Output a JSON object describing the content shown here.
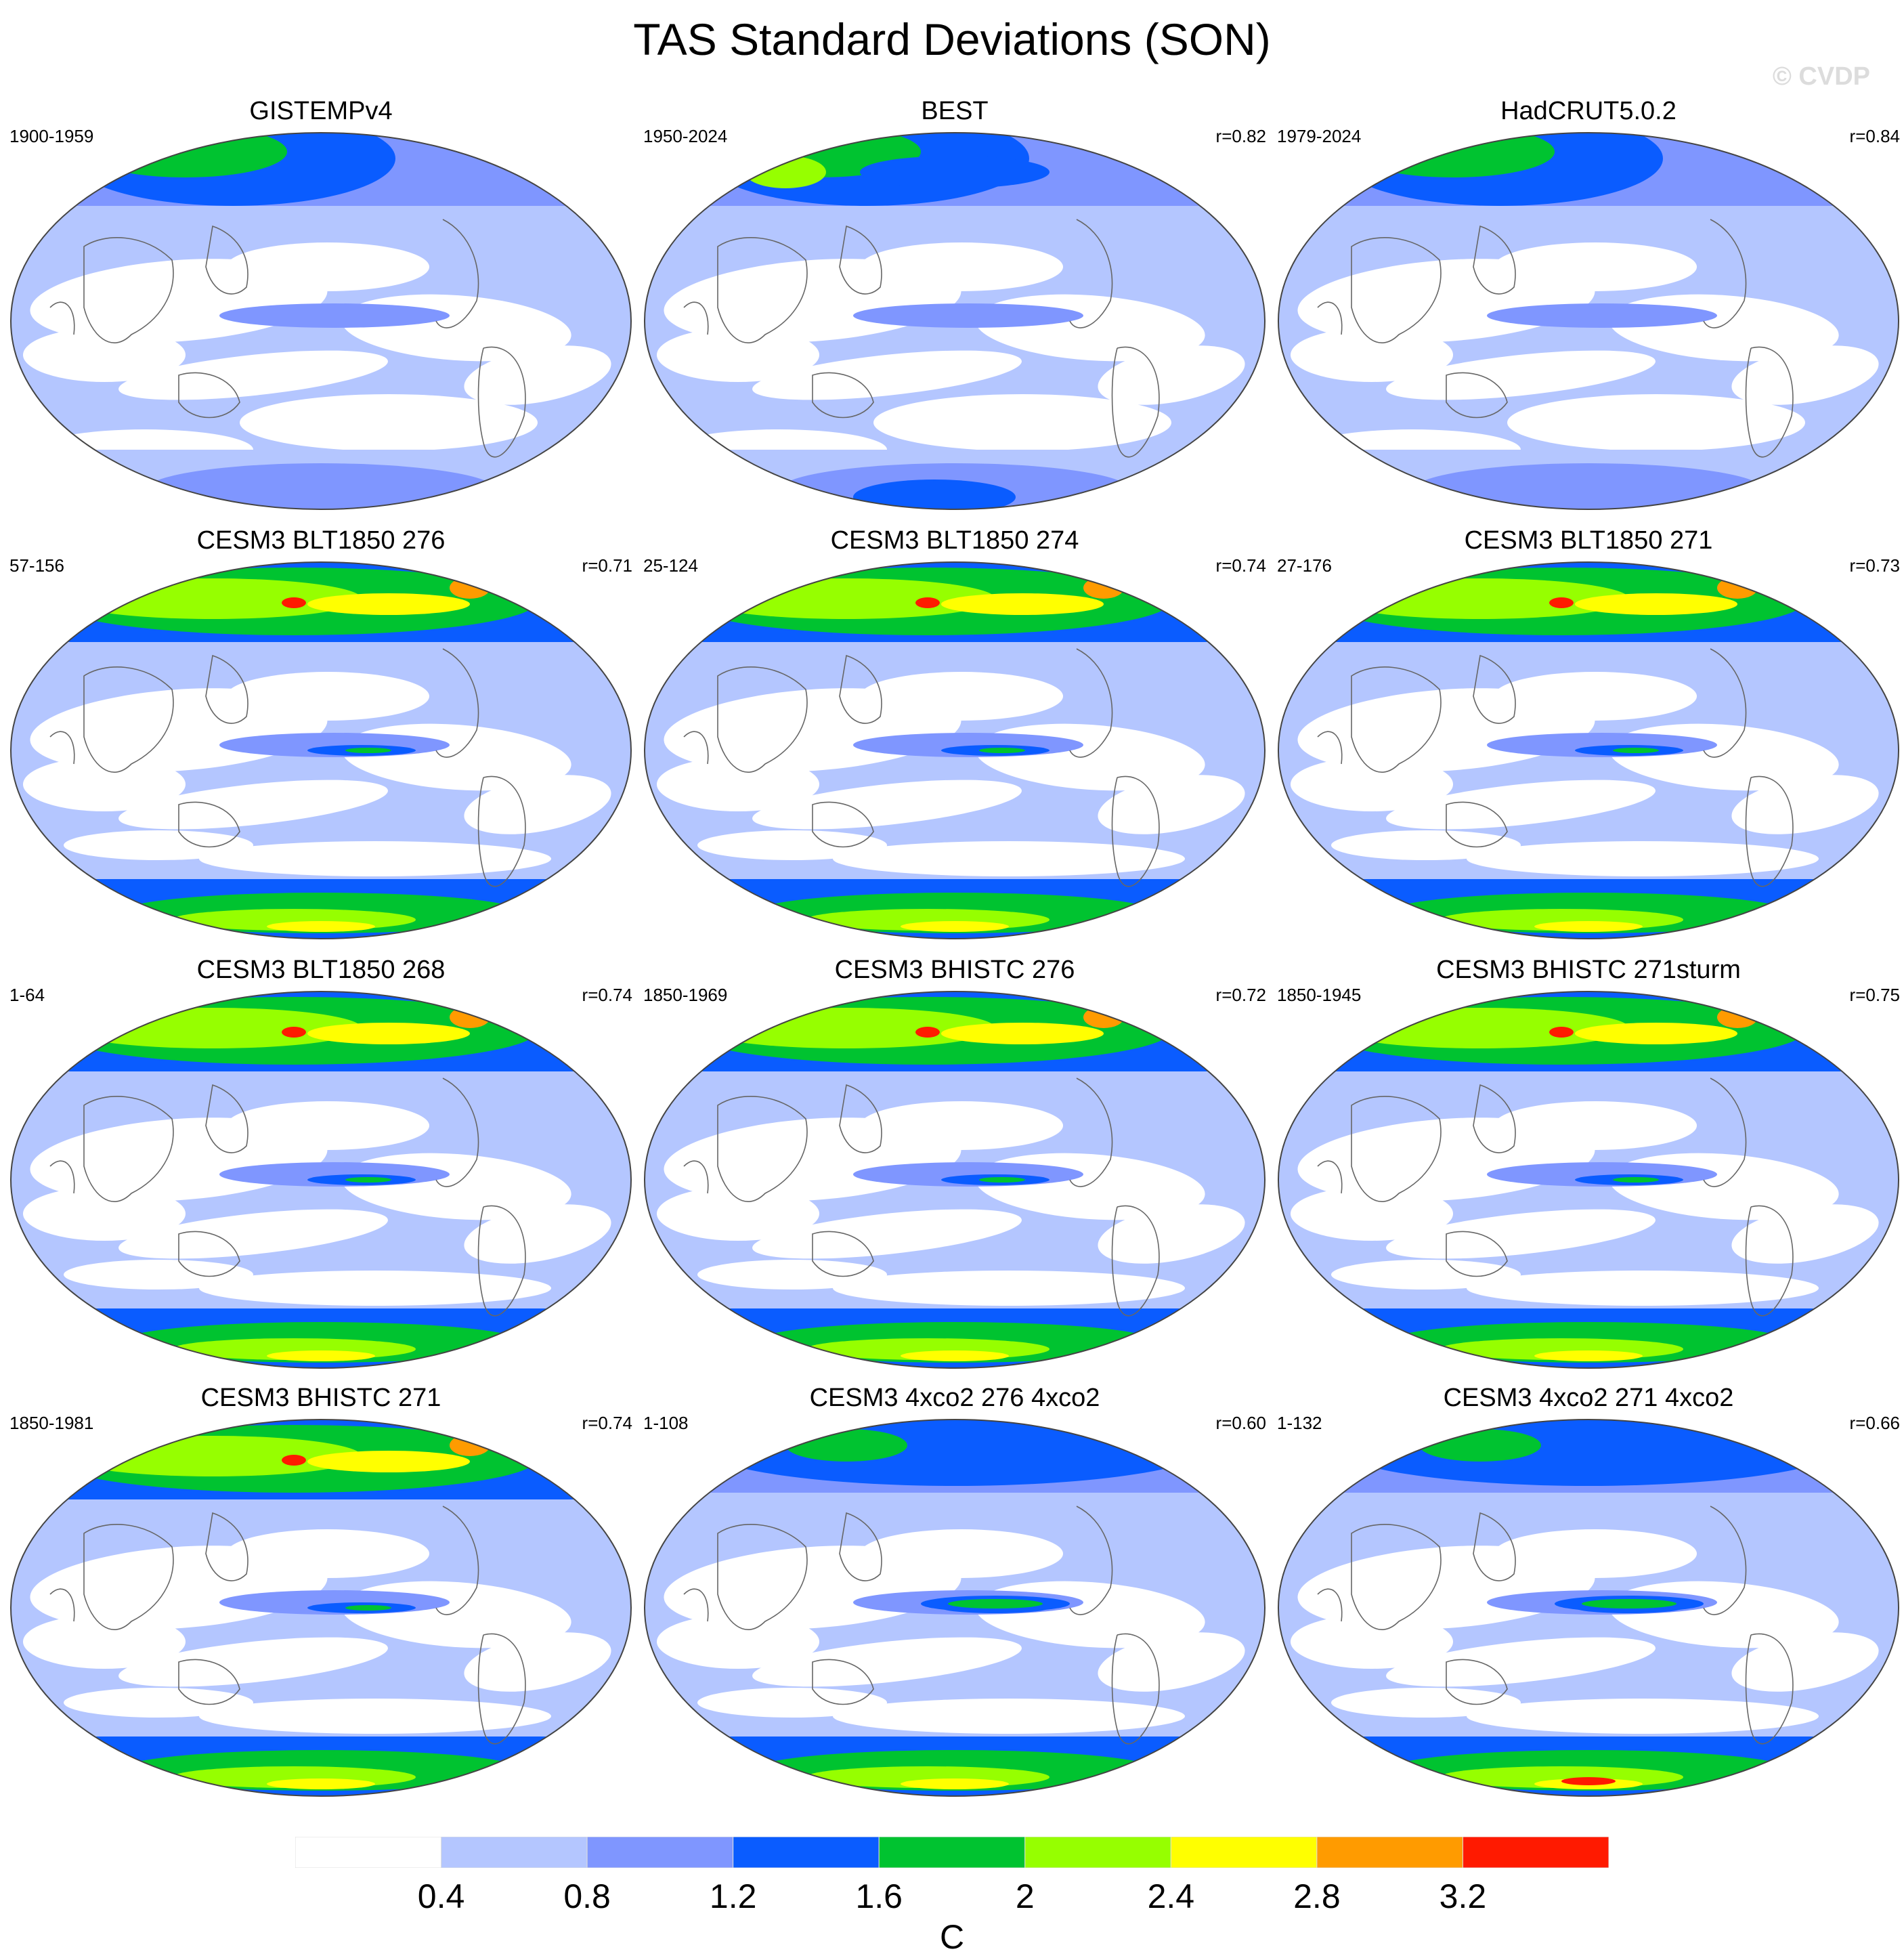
{
  "title": "TAS Standard Deviations (SON)",
  "watermark": "© CVDP",
  "chart_data": {
    "type": "heatmap",
    "title": "TAS Standard Deviations (SON)",
    "colorbar": {
      "unit": "C",
      "levels": [
        0.4,
        0.8,
        1.2,
        1.6,
        2,
        2.4,
        2.8,
        3.2
      ],
      "tick_labels": [
        "0.4",
        "0.8",
        "1.2",
        "1.6",
        "2",
        "2.4",
        "2.8",
        "3.2"
      ],
      "colors": [
        "#ffffff",
        "#b4c6ff",
        "#7f96ff",
        "#0a5cff",
        "#00c330",
        "#96ff00",
        "#ffff00",
        "#ff9b00",
        "#ff1a00"
      ]
    },
    "panels": [
      {
        "title": "GISTEMPv4",
        "period": "1900-1959",
        "corr": ""
      },
      {
        "title": "BEST",
        "period": "1950-2024",
        "corr": "r=0.82"
      },
      {
        "title": "HadCRUT5.0.2",
        "period": "1979-2024",
        "corr": "r=0.84"
      },
      {
        "title": "CESM3 BLT1850 276",
        "period": "57-156",
        "corr": "r=0.71"
      },
      {
        "title": "CESM3 BLT1850 274",
        "period": "25-124",
        "corr": "r=0.74"
      },
      {
        "title": "CESM3 BLT1850 271",
        "period": "27-176",
        "corr": "r=0.73"
      },
      {
        "title": "CESM3 BLT1850 268",
        "period": "1-64",
        "corr": "r=0.74"
      },
      {
        "title": "CESM3 BHISTC 276",
        "period": "1850-1969",
        "corr": "r=0.72"
      },
      {
        "title": "CESM3 BHISTC 271sturm",
        "period": "1850-1945",
        "corr": "r=0.75"
      },
      {
        "title": "CESM3 BHISTC 271",
        "period": "1850-1981",
        "corr": "r=0.74"
      },
      {
        "title": "CESM3 4xco2 276 4xco2",
        "period": "1-108",
        "corr": "r=0.60"
      },
      {
        "title": "CESM3 4xco2 271 4xco2",
        "period": "1-132",
        "corr": "r=0.66"
      }
    ]
  }
}
